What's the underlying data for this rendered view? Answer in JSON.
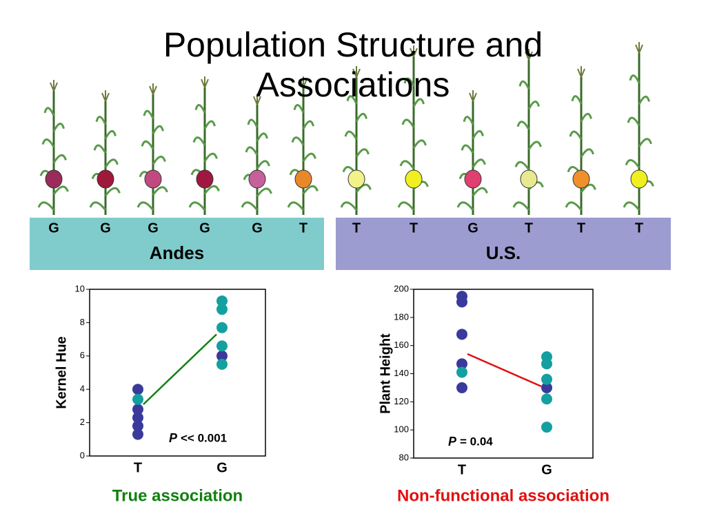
{
  "title": "Population Structure and Associations",
  "plants": {
    "groups": [
      {
        "name": "Andes",
        "color": "#80cccc",
        "items": [
          {
            "allele": "G",
            "color": "#9a2b5a"
          },
          {
            "allele": "G",
            "color": "#a0183a"
          },
          {
            "allele": "G",
            "color": "#c04a80"
          },
          {
            "allele": "G",
            "color": "#a01840"
          },
          {
            "allele": "G",
            "color": "#c6609a"
          },
          {
            "allele": "T",
            "color": "#e8882a"
          }
        ]
      },
      {
        "name": "U.S.",
        "color": "#9c9cd0",
        "items": [
          {
            "allele": "T",
            "color": "#f2f28a"
          },
          {
            "allele": "T",
            "color": "#f0f020"
          },
          {
            "allele": "G",
            "color": "#e04070"
          },
          {
            "allele": "T",
            "color": "#e8e890"
          },
          {
            "allele": "T",
            "color": "#f0902a"
          },
          {
            "allele": "T",
            "color": "#f0f020"
          }
        ]
      }
    ]
  },
  "chart_data": [
    {
      "type": "scatter",
      "y_label": "Kernel Hue",
      "categories": [
        "T",
        "G"
      ],
      "ylim": [
        0,
        10
      ],
      "yticks": [
        0,
        2,
        4,
        6,
        8,
        10
      ],
      "series": [
        {
          "color": "#3a3a9c",
          "x": [
            "T",
            "T",
            "T",
            "T",
            "T",
            "G"
          ],
          "values": [
            4,
            2.8,
            2.3,
            1.8,
            1.3,
            6.0
          ]
        },
        {
          "color": "#14a0a0",
          "x": [
            "T",
            "G",
            "G",
            "G",
            "G",
            "G"
          ],
          "values": [
            3.4,
            9.3,
            8.8,
            7.7,
            6.6,
            5.5
          ]
        }
      ],
      "fit": {
        "color": "#108010",
        "values": [
          3.1,
          7.3
        ]
      },
      "annotation": {
        "italic": "P",
        "text": "<< 0.001"
      },
      "caption": {
        "text": "True association",
        "color": "#108010"
      }
    },
    {
      "type": "scatter",
      "y_label": "Plant Height",
      "categories": [
        "T",
        "G"
      ],
      "ylim": [
        80,
        200
      ],
      "yticks": [
        80,
        100,
        120,
        140,
        160,
        180,
        200
      ],
      "series": [
        {
          "color": "#3a3a9c",
          "x": [
            "T",
            "T",
            "T",
            "T",
            "T",
            "G"
          ],
          "values": [
            195,
            191,
            168,
            147,
            130,
            130
          ]
        },
        {
          "color": "#14a0a0",
          "x": [
            "T",
            "G",
            "G",
            "G",
            "G",
            "G"
          ],
          "values": [
            141,
            152,
            147,
            136,
            122,
            102
          ]
        }
      ],
      "fit": {
        "color": "#e01010",
        "values": [
          154,
          131
        ]
      },
      "annotation": {
        "italic": "P",
        "text": "= 0.04"
      },
      "caption": {
        "text": "Non-functional association",
        "color": "#e01010"
      }
    }
  ]
}
